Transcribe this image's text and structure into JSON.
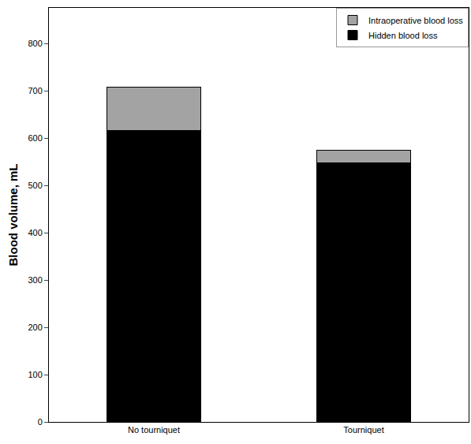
{
  "chart_data": {
    "type": "bar",
    "stacked": true,
    "categories": [
      "No tourniquet",
      "Tourniquet"
    ],
    "series": [
      {
        "name": "Hidden blood loss",
        "color": "#000000",
        "values": [
          616,
          548
        ]
      },
      {
        "name": "Intraoperative blood loss",
        "color": "#a3a3a3",
        "values": [
          91,
          26
        ]
      }
    ],
    "y_label": "Blood volume, mL",
    "ylim": [
      0,
      875
    ],
    "yticks": [
      0,
      100,
      200,
      300,
      400,
      500,
      600,
      700,
      800
    ],
    "grid": false,
    "legend": "top right"
  }
}
